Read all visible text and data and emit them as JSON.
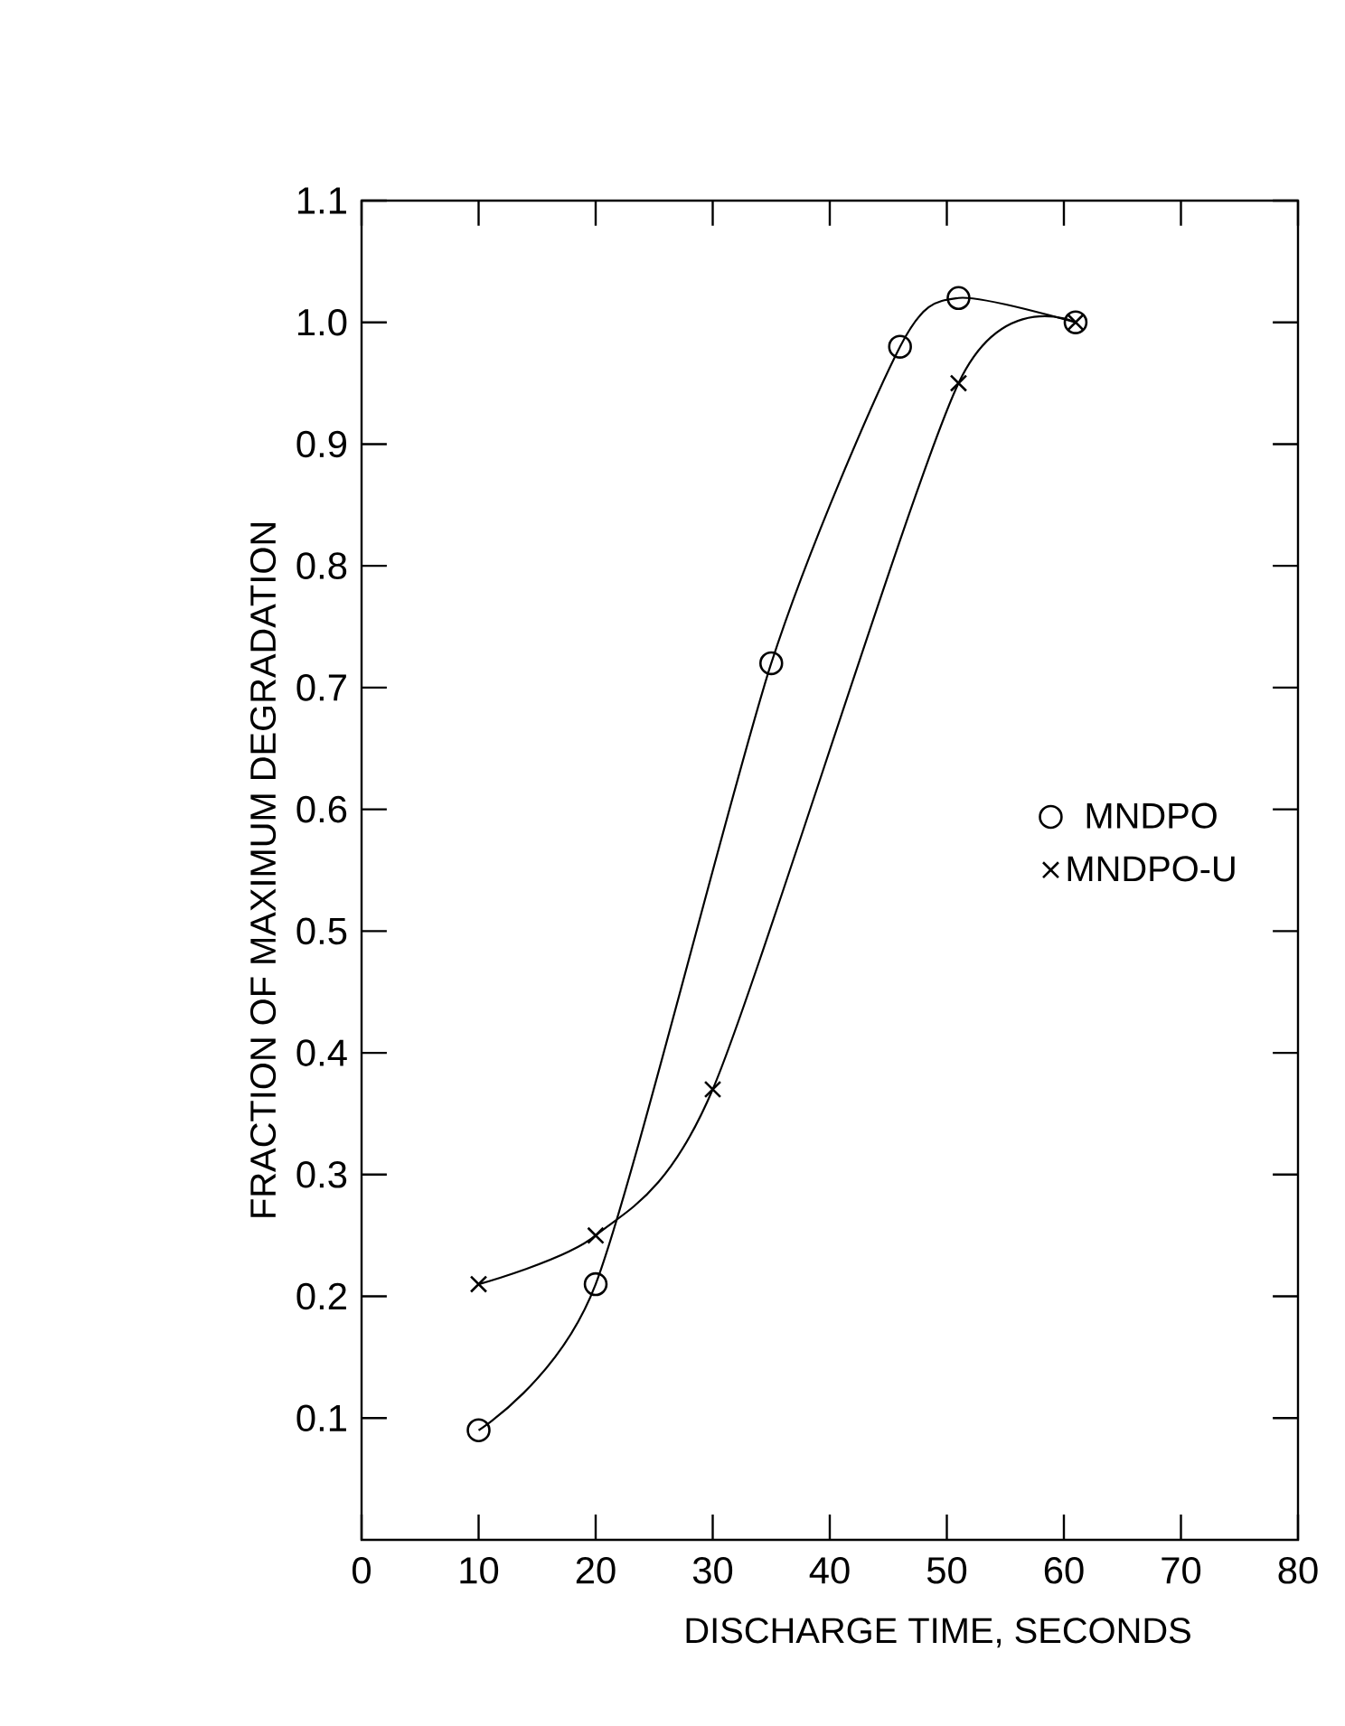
{
  "chart_data": {
    "type": "line",
    "xlabel": "DISCHARGE TIME, SECONDS",
    "ylabel": "FRACTION OF MAXIMUM DEGRADATION",
    "xlim": [
      0,
      80
    ],
    "xticks": [
      0,
      10,
      20,
      30,
      40,
      50,
      60,
      70,
      80
    ],
    "ylim": [
      0,
      1.1
    ],
    "yticks": [
      0.1,
      0.2,
      0.3,
      0.4,
      0.5,
      0.6,
      0.7,
      0.8,
      0.9,
      {
        "value": 1.0,
        "label": "1.0"
      },
      1.1
    ],
    "grid": false,
    "legend": "right",
    "series": [
      {
        "name": "MNDPO",
        "color": "#000000",
        "marker": "circle",
        "x": [
          10,
          20,
          35,
          46,
          51,
          61
        ],
        "values": [
          0.09,
          0.21,
          0.72,
          0.98,
          1.02,
          1.0
        ]
      },
      {
        "name": "MNDPO-U",
        "color": "#000000",
        "marker": "cross",
        "x": [
          10,
          20,
          30,
          51,
          61
        ],
        "values": [
          0.21,
          0.25,
          0.37,
          0.95,
          1.0
        ]
      }
    ]
  }
}
